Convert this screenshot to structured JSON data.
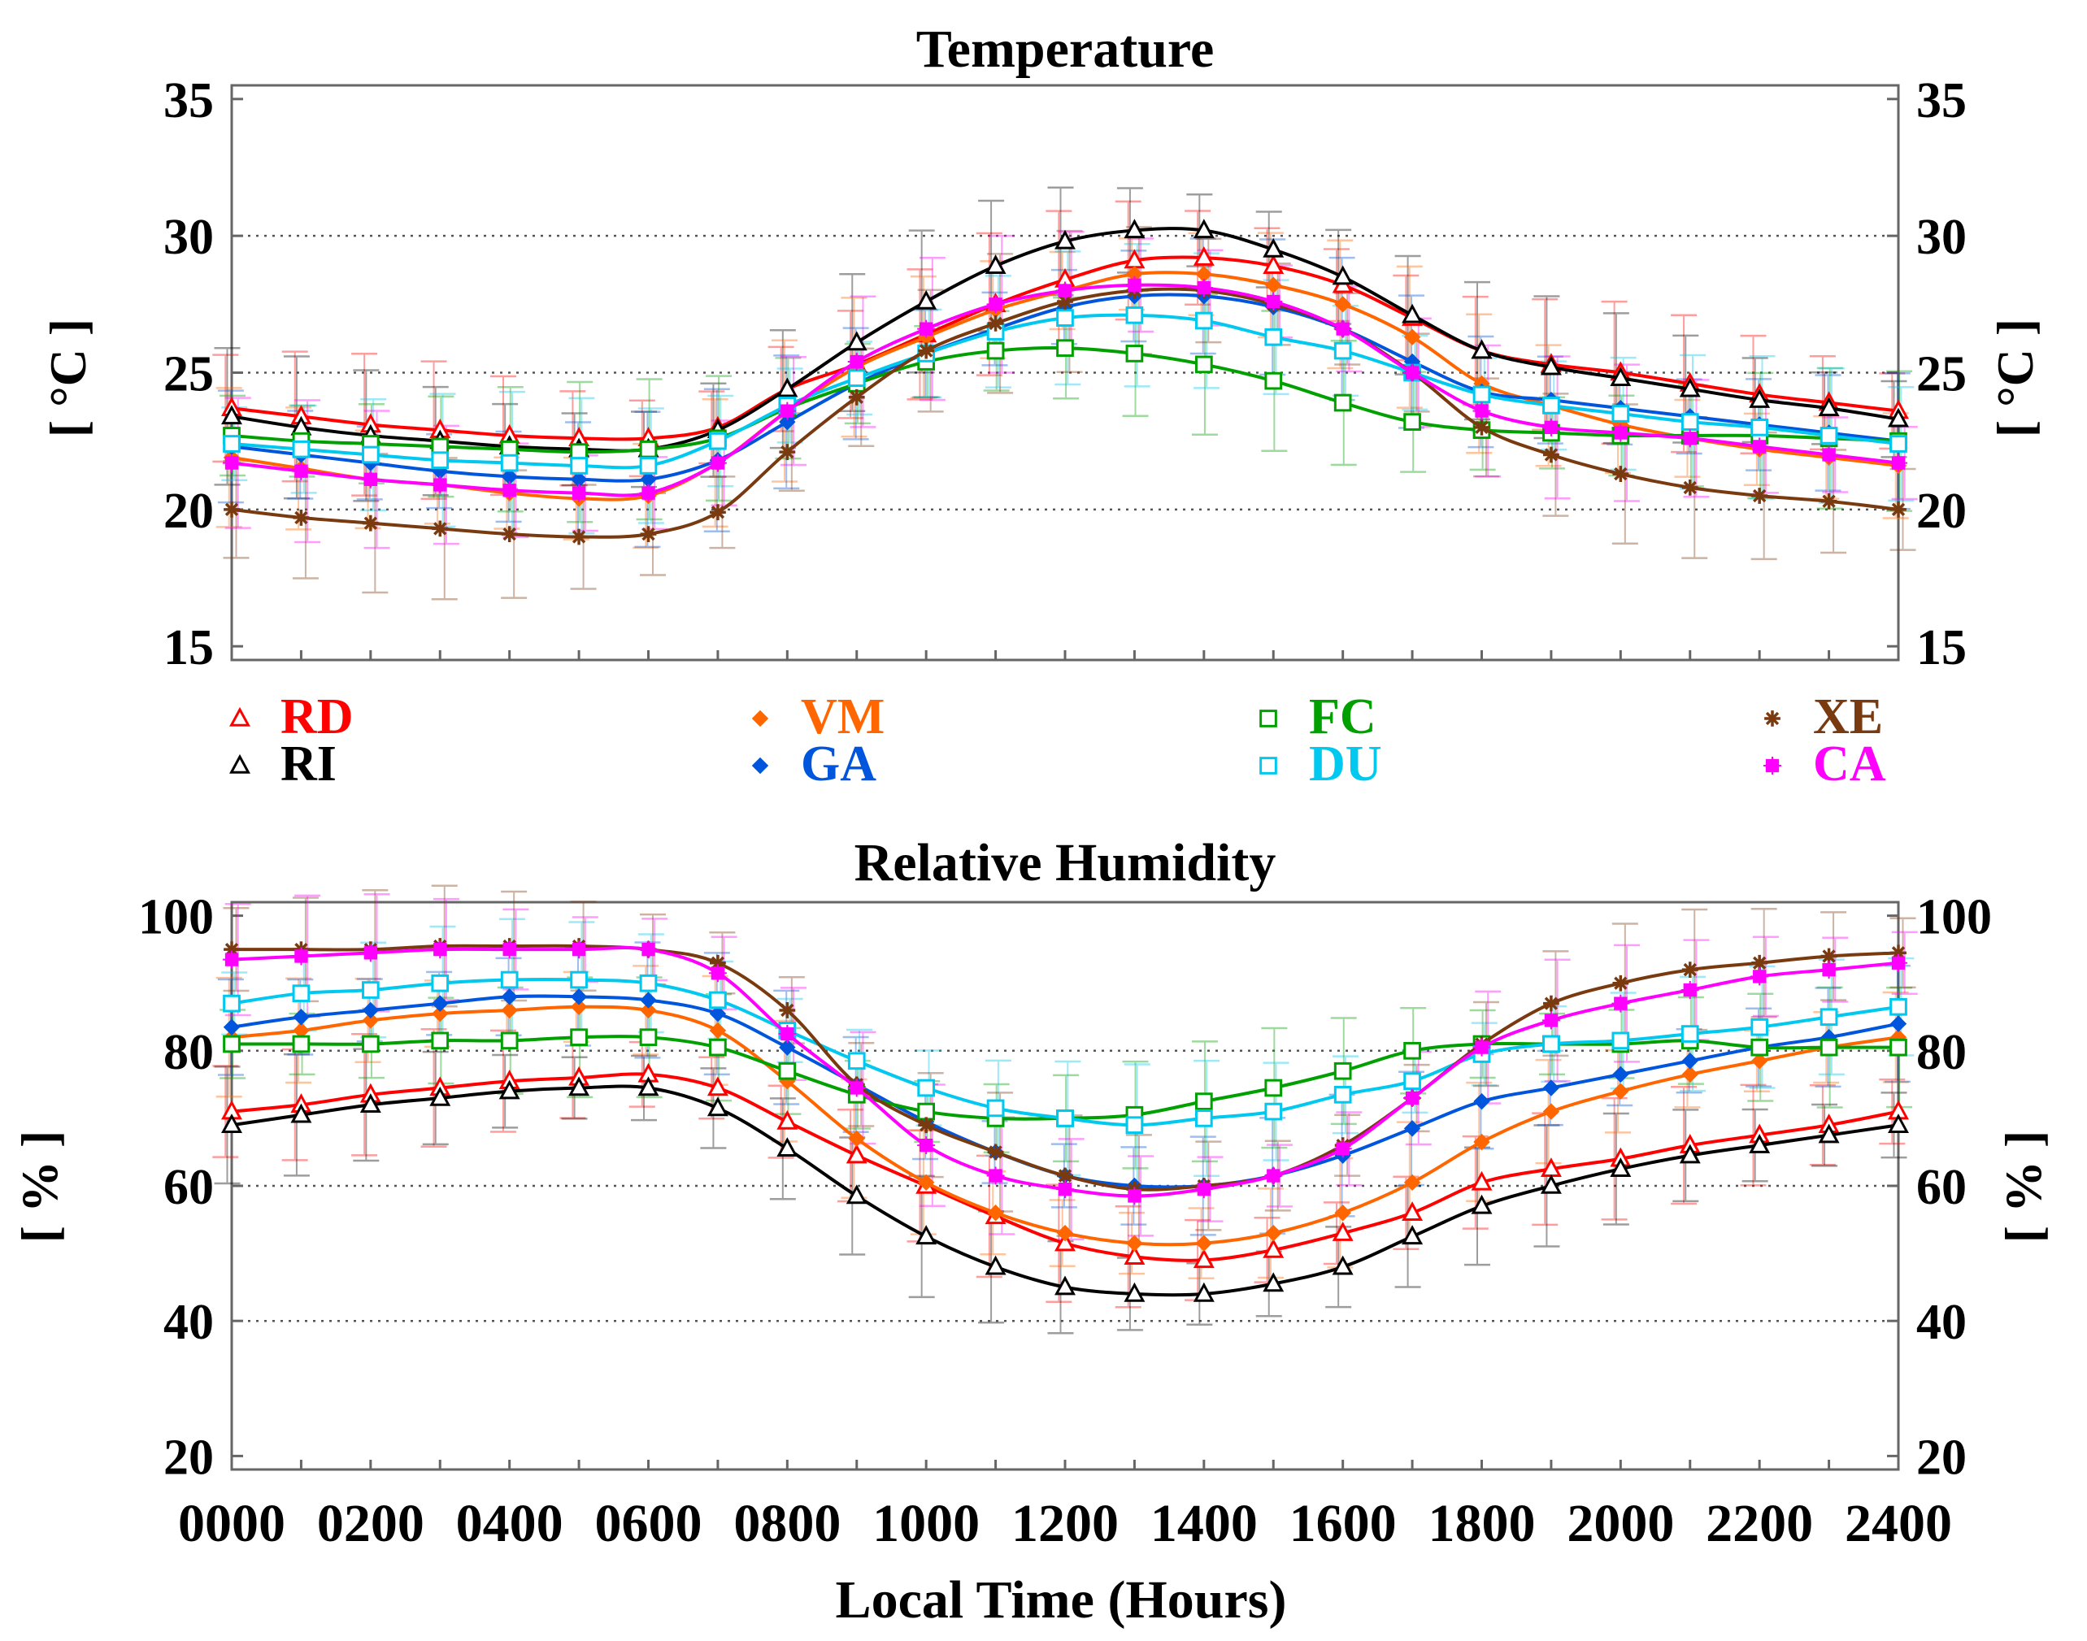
{
  "chart_data": [
    {
      "type": "line",
      "title": "Temperature",
      "ylabel": "[ °C ]",
      "ylim": [
        14.5,
        35.5
      ],
      "yticks": [
        15,
        20,
        25,
        30,
        35
      ],
      "gridlines": [
        20,
        25,
        30
      ],
      "grid": "dotted",
      "x": [
        0,
        1,
        2,
        3,
        4,
        5,
        6,
        7,
        8,
        9,
        10,
        11,
        12,
        13,
        14,
        15,
        16,
        17,
        18,
        19,
        20,
        21,
        22,
        23,
        24
      ],
      "series": [
        {
          "name": "RD",
          "marker": "triangle",
          "values": [
            23.7,
            23.4,
            23.1,
            22.9,
            22.7,
            22.6,
            22.6,
            23.0,
            24.4,
            25.3,
            26.4,
            27.5,
            28.4,
            29.1,
            29.2,
            28.9,
            28.2,
            27.0,
            25.8,
            25.3,
            25.0,
            24.6,
            24.2,
            23.9,
            23.6
          ]
        },
        {
          "name": "RI",
          "marker": "triangle",
          "values": [
            23.4,
            23.0,
            22.7,
            22.5,
            22.3,
            22.2,
            22.2,
            22.9,
            24.4,
            26.1,
            27.6,
            28.9,
            29.8,
            30.2,
            30.2,
            29.5,
            28.5,
            27.1,
            25.8,
            25.2,
            24.8,
            24.4,
            24.0,
            23.7,
            23.3
          ]
        },
        {
          "name": "VM",
          "marker": "diamond",
          "values": [
            21.9,
            21.5,
            21.1,
            20.9,
            20.6,
            20.4,
            20.5,
            21.7,
            23.6,
            25.2,
            26.3,
            27.3,
            28.0,
            28.6,
            28.6,
            28.2,
            27.5,
            26.3,
            24.6,
            23.8,
            23.1,
            22.6,
            22.2,
            21.9,
            21.6
          ]
        },
        {
          "name": "GA",
          "marker": "diamond",
          "values": [
            22.3,
            22.0,
            21.7,
            21.4,
            21.2,
            21.1,
            21.1,
            21.8,
            23.2,
            24.6,
            25.7,
            26.6,
            27.4,
            27.8,
            27.8,
            27.4,
            26.6,
            25.4,
            24.3,
            24.0,
            23.7,
            23.4,
            23.1,
            22.8,
            22.5
          ]
        },
        {
          "name": "FC",
          "marker": "square",
          "values": [
            22.7,
            22.5,
            22.4,
            22.3,
            22.2,
            22.1,
            22.2,
            22.6,
            23.7,
            24.6,
            25.4,
            25.8,
            25.9,
            25.7,
            25.3,
            24.7,
            23.9,
            23.2,
            22.9,
            22.8,
            22.7,
            22.7,
            22.7,
            22.6,
            22.5
          ]
        },
        {
          "name": "DU",
          "marker": "square",
          "values": [
            22.4,
            22.2,
            22.0,
            21.8,
            21.7,
            21.6,
            21.6,
            22.5,
            23.8,
            24.8,
            25.7,
            26.5,
            27.0,
            27.1,
            26.9,
            26.3,
            25.8,
            25.0,
            24.2,
            23.8,
            23.5,
            23.2,
            23.0,
            22.7,
            22.4
          ]
        },
        {
          "name": "XE",
          "marker": "asterisk",
          "values": [
            20.0,
            19.7,
            19.5,
            19.3,
            19.1,
            19.0,
            19.1,
            19.9,
            22.1,
            24.1,
            25.8,
            26.8,
            27.6,
            28.0,
            28.0,
            27.5,
            26.6,
            25.0,
            23.0,
            22.0,
            21.3,
            20.8,
            20.5,
            20.3,
            20.0
          ]
        },
        {
          "name": "CA",
          "marker": "star",
          "values": [
            21.7,
            21.4,
            21.1,
            20.9,
            20.7,
            20.6,
            20.6,
            21.7,
            23.6,
            25.4,
            26.6,
            27.5,
            28.0,
            28.2,
            28.1,
            27.6,
            26.6,
            25.0,
            23.6,
            23.0,
            22.8,
            22.6,
            22.3,
            22.0,
            21.7
          ]
        }
      ]
    },
    {
      "type": "line",
      "title": "Relative Humidity",
      "ylabel": "[ % ]",
      "xlabel": "Local Time (Hours)",
      "ylim": [
        18,
        102
      ],
      "yticks": [
        20,
        40,
        60,
        80,
        100
      ],
      "gridlines": [
        40,
        60,
        80
      ],
      "grid": "dotted",
      "x": [
        0,
        1,
        2,
        3,
        4,
        5,
        6,
        7,
        8,
        9,
        10,
        11,
        12,
        13,
        14,
        15,
        16,
        17,
        18,
        19,
        20,
        21,
        22,
        23,
        24
      ],
      "xticklabels": [
        "0000",
        "0200",
        "0400",
        "0600",
        "0800",
        "1000",
        "1200",
        "1400",
        "1600",
        "1800",
        "2000",
        "2200",
        "2400"
      ],
      "series": [
        {
          "name": "RD",
          "marker": "triangle",
          "values": [
            71,
            72,
            73.5,
            74.5,
            75.5,
            76,
            76.5,
            74.5,
            69.5,
            64.5,
            60,
            55.5,
            51.5,
            49.5,
            49,
            50.5,
            53,
            56,
            60.5,
            62.5,
            64,
            66,
            67.5,
            69,
            71
          ]
        },
        {
          "name": "RI",
          "marker": "triangle",
          "values": [
            69,
            70.5,
            72,
            73,
            74,
            74.5,
            74.5,
            71.5,
            65.5,
            58.5,
            52.5,
            48,
            45,
            44,
            44,
            45.5,
            48,
            52.5,
            57,
            60,
            62.5,
            64.5,
            66,
            67.5,
            69
          ]
        },
        {
          "name": "VM",
          "marker": "diamond",
          "values": [
            82,
            83,
            84.5,
            85.5,
            86,
            86.5,
            86,
            83,
            75.5,
            67,
            60.5,
            56,
            53,
            51.5,
            51.5,
            53,
            56,
            60.5,
            66.5,
            71,
            74,
            76.5,
            78.5,
            80.5,
            82
          ]
        },
        {
          "name": "GA",
          "marker": "diamond",
          "values": [
            83.5,
            85,
            86,
            87,
            88,
            88,
            87.5,
            85.5,
            80.5,
            75,
            69.5,
            65,
            61.5,
            60,
            60,
            61.5,
            64.5,
            68.5,
            72.5,
            74.5,
            76.5,
            78.5,
            80.5,
            82,
            84
          ]
        },
        {
          "name": "FC",
          "marker": "square",
          "values": [
            81,
            81,
            81,
            81.5,
            81.5,
            82,
            82,
            80.5,
            77,
            73.5,
            71,
            70,
            70,
            70.5,
            72.5,
            74.5,
            77,
            80,
            81,
            81,
            81,
            81.5,
            80.5,
            80.5,
            80.5
          ]
        },
        {
          "name": "DU",
          "marker": "square",
          "values": [
            87,
            88.5,
            89,
            90,
            90.5,
            90.5,
            90,
            87.5,
            83,
            78.5,
            74.5,
            71.5,
            70,
            69,
            70,
            71,
            73.5,
            75.5,
            79.5,
            81,
            81.5,
            82.5,
            83.5,
            85,
            86.5
          ]
        },
        {
          "name": "XE",
          "marker": "asterisk",
          "values": [
            95,
            95,
            95,
            95.5,
            95.5,
            95.5,
            95,
            93,
            86,
            75,
            69,
            65,
            61.5,
            59.5,
            60,
            61.5,
            66,
            73,
            81,
            87,
            90,
            92,
            93,
            94,
            94.5
          ]
        },
        {
          "name": "CA",
          "marker": "star",
          "values": [
            93.5,
            94,
            94.5,
            95,
            95,
            95,
            95,
            91.5,
            82.5,
            74.5,
            66,
            61.5,
            59.5,
            58.5,
            59.5,
            61.5,
            65.5,
            73,
            80.5,
            84.5,
            87,
            89,
            91,
            92,
            93
          ]
        }
      ]
    }
  ],
  "legend": {
    "entries": [
      {
        "name": "RD",
        "color": "#ff0000",
        "marker": "triangle"
      },
      {
        "name": "VM",
        "color": "#ff6600",
        "marker": "diamond"
      },
      {
        "name": "FC",
        "color": "#00a000",
        "marker": "square"
      },
      {
        "name": "XE",
        "color": "#7a3a10",
        "marker": "asterisk"
      },
      {
        "name": "RI",
        "color": "#000000",
        "marker": "triangle"
      },
      {
        "name": "GA",
        "color": "#0055dd",
        "marker": "diamond"
      },
      {
        "name": "DU",
        "color": "#00c8ee",
        "marker": "square"
      },
      {
        "name": "CA",
        "color": "#ff00ff",
        "marker": "star"
      }
    ]
  }
}
